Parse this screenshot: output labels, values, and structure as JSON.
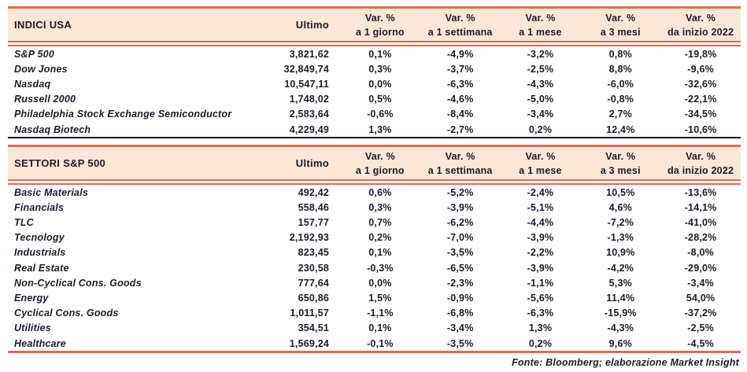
{
  "table": {
    "header": {
      "ultimo": "Ultimo",
      "var_label": "Var. %",
      "sub_labels": [
        "a 1 giorno",
        "a 1 settimana",
        "a 1 mese",
        "a 3 mesi",
        "da inizio 2022"
      ]
    },
    "sections": [
      {
        "title": "INDICI USA",
        "rows": [
          [
            "S&P 500",
            "3,821,62",
            "0,1%",
            "-4,9%",
            "-3,2%",
            "0,8%",
            "-19,8%"
          ],
          [
            "Dow Jones",
            "32,849,74",
            "0,3%",
            "-3,7%",
            "-2,5%",
            "8,8%",
            "-9,6%"
          ],
          [
            "Nasdaq",
            "10,547,11",
            "0,0%",
            "-6,3%",
            "-4,3%",
            "-6,0%",
            "-32,6%"
          ],
          [
            "Russell 2000",
            "1,748,02",
            "0,5%",
            "-4,6%",
            "-5,0%",
            "-0,8%",
            "-22,1%"
          ],
          [
            "Philadelphia Stock Exchange Semiconductor",
            "2,583,64",
            "-0,6%",
            "-8,4%",
            "-3,4%",
            "2,7%",
            "-34,5%"
          ],
          [
            "Nasdaq Biotech",
            "4,229,49",
            "1,3%",
            "-2,7%",
            "0,2%",
            "12,4%",
            "-10,6%"
          ]
        ]
      },
      {
        "title": "SETTORI S&P 500",
        "rows": [
          [
            "Basic Materials",
            "492,42",
            "0,6%",
            "-5,2%",
            "-2,4%",
            "10,5%",
            "-13,6%"
          ],
          [
            "Financials",
            "558,46",
            "0,3%",
            "-3,9%",
            "-5,1%",
            "4,6%",
            "-14,1%"
          ],
          [
            "TLC",
            "157,77",
            "0,7%",
            "-6,2%",
            "-4,4%",
            "-7,2%",
            "-41,0%"
          ],
          [
            "Tecnology",
            "2,192,93",
            "0,2%",
            "-7,0%",
            "-3,9%",
            "-1,3%",
            "-28,2%"
          ],
          [
            "Industrials",
            "823,45",
            "0,1%",
            "-3,5%",
            "-2,2%",
            "10,9%",
            "-8,0%"
          ],
          [
            "Real Estate",
            "230,58",
            "-0,3%",
            "-6,5%",
            "-3,9%",
            "-4,2%",
            "-29,0%"
          ],
          [
            "Non-Cyclical Cons. Goods",
            "777,64",
            "0,0%",
            "-2,3%",
            "-1,1%",
            "5,3%",
            "-3,4%"
          ],
          [
            "Energy",
            "650,86",
            "1,5%",
            "-0,9%",
            "-5,6%",
            "11,4%",
            "54,0%"
          ],
          [
            "Cyclical Cons. Goods",
            "1,011,57",
            "-1,1%",
            "-6,8%",
            "-6,3%",
            "-15,9%",
            "-37,2%"
          ],
          [
            "Utilities",
            "354,51",
            "0,1%",
            "-3,4%",
            "1,3%",
            "-4,3%",
            "-2,5%"
          ],
          [
            "Healthcare",
            "1,569,24",
            "-0,1%",
            "-3,5%",
            "0,2%",
            "9,6%",
            "-4,5%"
          ]
        ]
      }
    ],
    "footer": "Fonte: Bloomberg; elaborazione Market Insight"
  },
  "colors": {
    "accent_coral": "#e8694e",
    "header_fill_peach": "#fae7d7",
    "text_dark": "#1b1b2b"
  }
}
